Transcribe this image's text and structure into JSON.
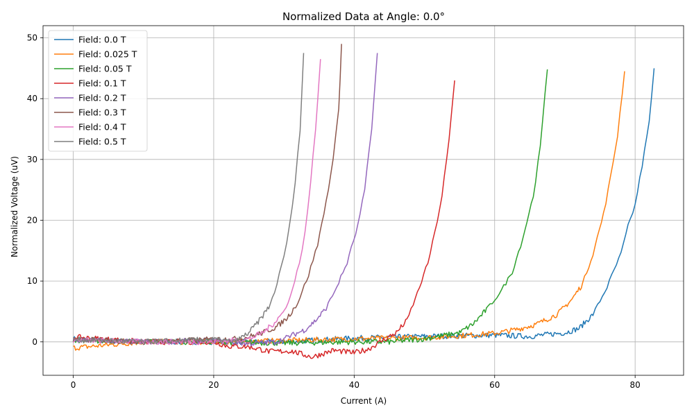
{
  "colors": {
    "series": [
      "#1f77b4",
      "#ff7f0e",
      "#2ca02c",
      "#d62728",
      "#9467bd",
      "#8c564b",
      "#e377c2",
      "#7f7f7f"
    ],
    "grid": "#b0b0b0",
    "axis": "#000000",
    "background": "#ffffff"
  },
  "chart_data": {
    "type": "line",
    "title": "Normalized Data at Angle: 0.0°",
    "xlabel": "Current (A)",
    "ylabel": "Normalized Voltage (uV)",
    "xlim": [
      -4.3,
      86.9
    ],
    "ylim": [
      -5.5,
      52
    ],
    "xticks": [
      0,
      20,
      40,
      60,
      80
    ],
    "yticks": [
      0,
      10,
      20,
      30,
      40,
      50
    ],
    "xtick_labels": [
      "0",
      "20",
      "40",
      "60",
      "80"
    ],
    "ytick_labels": [
      "0",
      "10",
      "20",
      "30",
      "40",
      "50"
    ],
    "grid": true,
    "legend_position": "top-left",
    "series": [
      {
        "name": "Field: 0.0 T",
        "values": [
          [
            0,
            0.5
          ],
          [
            10,
            0.0
          ],
          [
            20,
            0.0
          ],
          [
            30,
            0.0
          ],
          [
            40,
            0.6
          ],
          [
            50,
            0.9
          ],
          [
            60,
            1.1
          ],
          [
            65,
            0.9
          ],
          [
            70,
            1.5
          ],
          [
            72,
            2.2
          ],
          [
            74,
            4.5
          ],
          [
            76,
            9
          ],
          [
            78,
            14.5
          ],
          [
            79,
            19
          ],
          [
            80,
            22.5
          ],
          [
            81,
            29
          ],
          [
            82,
            36
          ],
          [
            82.7,
            45
          ]
        ]
      },
      {
        "name": "Field: 0.025 T",
        "values": [
          [
            0,
            -1.0
          ],
          [
            10,
            0.0
          ],
          [
            20,
            0.0
          ],
          [
            30,
            0.2
          ],
          [
            40,
            0.5
          ],
          [
            50,
            0.7
          ],
          [
            55,
            1.0
          ],
          [
            60,
            1.4
          ],
          [
            63,
            2.0
          ],
          [
            66,
            2.9
          ],
          [
            69,
            4.6
          ],
          [
            71,
            7.0
          ],
          [
            72.5,
            9.5
          ],
          [
            74,
            14.5
          ],
          [
            75.5,
            21
          ],
          [
            76.5,
            27
          ],
          [
            77.5,
            34
          ],
          [
            78.5,
            44.5
          ]
        ]
      },
      {
        "name": "Field: 0.05 T",
        "values": [
          [
            0,
            0.3
          ],
          [
            10,
            0.0
          ],
          [
            20,
            0.0
          ],
          [
            30,
            -0.2
          ],
          [
            40,
            0.0
          ],
          [
            45,
            0.0
          ],
          [
            50,
            0.5
          ],
          [
            55,
            1.5
          ],
          [
            57,
            3.0
          ],
          [
            59,
            5.5
          ],
          [
            61,
            8.5
          ],
          [
            62.5,
            11.5
          ],
          [
            64,
            17
          ],
          [
            65.5,
            24
          ],
          [
            66.5,
            32
          ],
          [
            67.5,
            44.8
          ]
        ]
      },
      {
        "name": "Field: 0.1 T",
        "values": [
          [
            0,
            0.8
          ],
          [
            10,
            0.0
          ],
          [
            20,
            0.0
          ],
          [
            22,
            -0.7
          ],
          [
            25,
            -0.8
          ],
          [
            28,
            -1.6
          ],
          [
            31,
            -1.5
          ],
          [
            34,
            -2.5
          ],
          [
            37,
            -1.4
          ],
          [
            40,
            -1.8
          ],
          [
            42,
            -1.2
          ],
          [
            44,
            0.2
          ],
          [
            46,
            1.5
          ],
          [
            47.5,
            3.5
          ],
          [
            49,
            8.0
          ],
          [
            50.5,
            13
          ],
          [
            51.5,
            18
          ],
          [
            52.5,
            24
          ],
          [
            53.5,
            33
          ],
          [
            54.3,
            43
          ]
        ]
      },
      {
        "name": "Field: 0.2 T",
        "values": [
          [
            0,
            0.3
          ],
          [
            10,
            0.0
          ],
          [
            20,
            0.2
          ],
          [
            25,
            -0.3
          ],
          [
            29,
            0.0
          ],
          [
            31,
            1.0
          ],
          [
            33,
            2.0
          ],
          [
            34.5,
            3.5
          ],
          [
            36,
            5.5
          ],
          [
            37.5,
            9.0
          ],
          [
            39,
            13
          ],
          [
            40.5,
            19
          ],
          [
            41.5,
            25
          ],
          [
            42.5,
            35
          ],
          [
            43.3,
            47.5
          ]
        ]
      },
      {
        "name": "Field: 0.3 T",
        "values": [
          [
            0,
            0.4
          ],
          [
            10,
            0.0
          ],
          [
            20,
            0.4
          ],
          [
            24,
            0.5
          ],
          [
            27,
            1.5
          ],
          [
            29,
            2.5
          ],
          [
            30.5,
            4.0
          ],
          [
            32,
            6.5
          ],
          [
            33.5,
            11
          ],
          [
            34.8,
            16
          ],
          [
            36,
            23
          ],
          [
            37,
            30
          ],
          [
            37.8,
            38
          ],
          [
            38.2,
            49
          ]
        ]
      },
      {
        "name": "Field: 0.4 T",
        "values": [
          [
            0,
            0.3
          ],
          [
            10,
            0.0
          ],
          [
            20,
            0.0
          ],
          [
            25,
            0.5
          ],
          [
            27,
            1.5
          ],
          [
            28.5,
            3.0
          ],
          [
            30,
            5.0
          ],
          [
            31.2,
            8.5
          ],
          [
            32.2,
            13
          ],
          [
            33,
            18
          ],
          [
            33.8,
            26
          ],
          [
            34.5,
            35
          ],
          [
            35.2,
            46.5
          ]
        ]
      },
      {
        "name": "Field: 0.5 T",
        "values": [
          [
            0,
            0.4
          ],
          [
            10,
            0.0
          ],
          [
            20,
            0.4
          ],
          [
            23,
            0.0
          ],
          [
            25,
            1.5
          ],
          [
            26.5,
            3.5
          ],
          [
            28,
            6.0
          ],
          [
            29,
            9.5
          ],
          [
            30,
            14
          ],
          [
            30.8,
            19
          ],
          [
            31.6,
            26
          ],
          [
            32.3,
            35
          ],
          [
            32.8,
            47.5
          ]
        ]
      }
    ]
  }
}
